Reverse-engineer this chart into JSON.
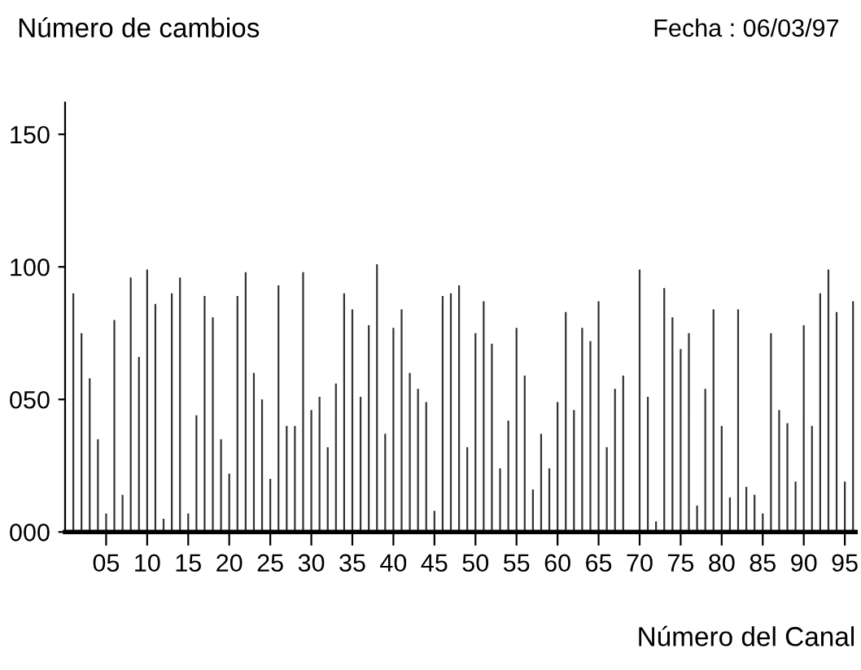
{
  "chart_data": {
    "type": "bar",
    "ylabel": "Número de cambios",
    "xlabel": "Número del Canal",
    "annotations": [
      "Fecha : 06/03/97"
    ],
    "categories": [
      null,
      null,
      null,
      null,
      "05",
      null,
      null,
      null,
      null,
      "10",
      null,
      null,
      null,
      null,
      "15",
      null,
      null,
      null,
      null,
      "20",
      null,
      null,
      null,
      null,
      "25",
      null,
      null,
      null,
      null,
      "30",
      null,
      null,
      null,
      null,
      "35",
      null,
      null,
      null,
      null,
      "40",
      null,
      null,
      null,
      null,
      "45",
      null,
      null,
      null,
      null,
      "50",
      null,
      null,
      null,
      null,
      "55",
      null,
      null,
      null,
      null,
      "60",
      null,
      null,
      null,
      null,
      "65",
      null,
      null,
      null,
      null,
      "70",
      null,
      null,
      null,
      null,
      "75",
      null,
      null,
      null,
      null,
      "80",
      null,
      null,
      null,
      null,
      "85",
      null,
      null,
      null,
      null,
      "90",
      null,
      null,
      null,
      null,
      "95",
      null
    ],
    "values": [
      90,
      75,
      58,
      35,
      7,
      80,
      14,
      96,
      66,
      99,
      86,
      5,
      90,
      96,
      7,
      44,
      89,
      81,
      35,
      22,
      89,
      98,
      60,
      50,
      20,
      93,
      40,
      40,
      98,
      46,
      51,
      32,
      56,
      90,
      84,
      51,
      78,
      101,
      37,
      77,
      84,
      60,
      54,
      49,
      8,
      89,
      90,
      93,
      32,
      75,
      87,
      71,
      24,
      42,
      77,
      59,
      16,
      37,
      24,
      49,
      83,
      46,
      77,
      72,
      87,
      32,
      54,
      59,
      0,
      99,
      51,
      4,
      92,
      81,
      69,
      75,
      10,
      54,
      84,
      40,
      13,
      84,
      17,
      14,
      7,
      75,
      46,
      41,
      19,
      78,
      40,
      90,
      99,
      83,
      19,
      87
    ],
    "color": "#333333",
    "ylim": [
      0,
      162
    ],
    "yticks": [
      {
        "value": 0,
        "label": "000"
      },
      {
        "value": 50,
        "label": "050"
      },
      {
        "value": 100,
        "label": "100"
      },
      {
        "value": 150,
        "label": "150"
      }
    ],
    "grid": false,
    "legend": false
  }
}
